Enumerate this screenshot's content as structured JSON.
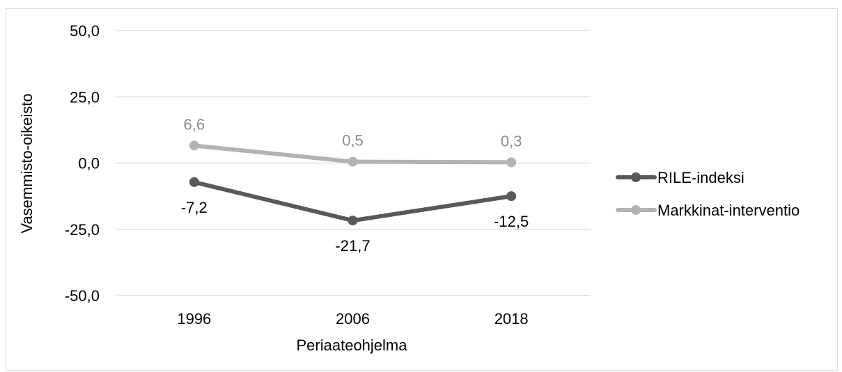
{
  "chart_data": {
    "type": "line",
    "xlabel": "Periaateohjelma",
    "ylabel": "Vasemmisto-oikeisto",
    "categories": [
      "1996",
      "2006",
      "2018"
    ],
    "ylim": [
      -50,
      50
    ],
    "yticks": [
      -50,
      -25,
      0,
      25,
      50
    ],
    "ytick_labels": [
      "-50,0",
      "-25,0",
      "0,0",
      "25,0",
      "50,0"
    ],
    "grid": true,
    "legend_position": "right",
    "series": [
      {
        "name": "RILE-indeksi",
        "color": "#595959",
        "values": [
          -7.2,
          -21.7,
          -12.5
        ],
        "labels": [
          "-7,2",
          "-21,7",
          "-12,5"
        ],
        "label_placement": "below"
      },
      {
        "name": "Markkinat-interventio",
        "color": "#b3b3b3",
        "label_color": "#8c8c8c",
        "values": [
          6.6,
          0.5,
          0.3
        ],
        "labels": [
          "6,6",
          "0,5",
          "0,3"
        ],
        "label_placement": "above"
      }
    ]
  }
}
